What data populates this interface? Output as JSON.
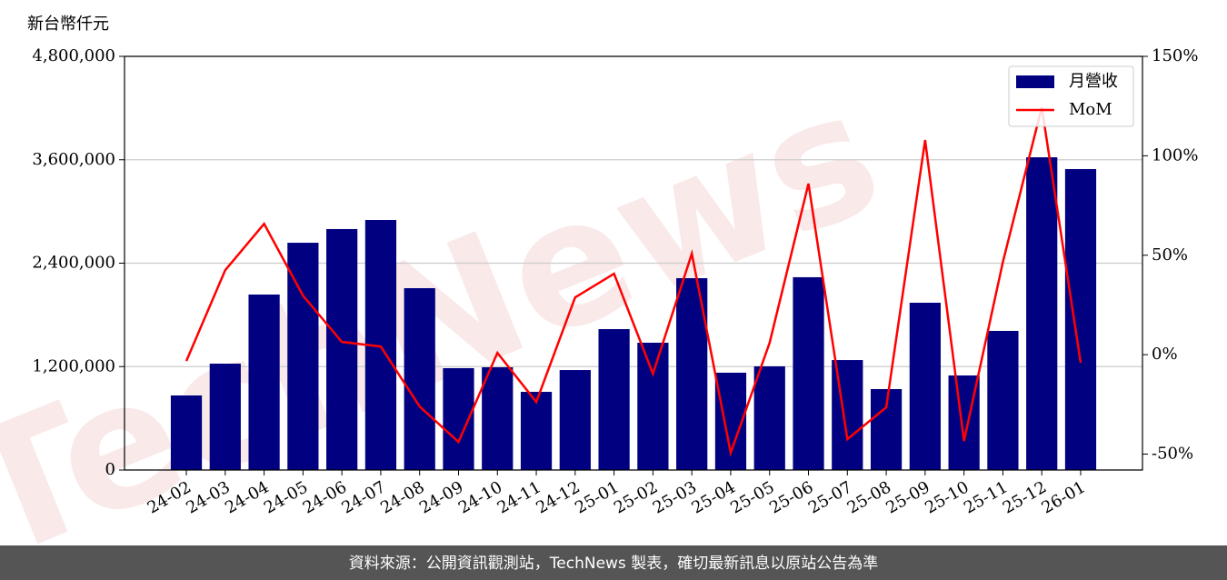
{
  "chart_data": {
    "type": "bar",
    "y_axis_label": "新台幣仟元",
    "watermark": "TechNews",
    "footer": "資料來源：公開資訊觀測站，TechNews 製表，確切最新訊息以原站公告為準",
    "categories": [
      "24-02",
      "24-03",
      "24-04",
      "24-05",
      "24-06",
      "24-07",
      "24-08",
      "24-09",
      "24-10",
      "24-11",
      "24-12",
      "25-01",
      "25-02",
      "25-03",
      "25-04",
      "25-05",
      "25-06",
      "25-07",
      "25-08",
      "25-09",
      "25-10",
      "25-11",
      "25-12",
      "26-01"
    ],
    "series": [
      {
        "name": "月營收",
        "type": "bar",
        "color": "#000080",
        "values": [
          865000,
          1234000,
          2036000,
          2637000,
          2796000,
          2901000,
          2110000,
          1182000,
          1192000,
          907000,
          1160000,
          1635000,
          1477000,
          2226000,
          1129000,
          1203000,
          2237000,
          1276000,
          939000,
          1941000,
          1097000,
          1614000,
          3629000,
          3492000
        ]
      },
      {
        "name": "MoM",
        "type": "line",
        "color": "#ff0000",
        "axis": "y2",
        "values": [
          -3.2,
          42.5,
          65.8,
          29.7,
          6.4,
          4.1,
          -26.1,
          -43.9,
          0.9,
          -23.8,
          28.8,
          40.7,
          -9.6,
          50.8,
          -49.4,
          5.9,
          86.0,
          -42.5,
          -26.5,
          107.9,
          -43.4,
          46.6,
          124.4,
          -4.1
        ]
      }
    ],
    "ylim": [
      0,
      4800000
    ],
    "yticks": [
      0,
      {
        "value": 1200000,
        "label": "1,200,000"
      },
      {
        "value": 2400000,
        "label": "2,400,000"
      },
      {
        "value": 3600000,
        "label": "3,600,000"
      },
      {
        "value": 4800000,
        "label": "4,800,000"
      }
    ],
    "y2lim": [
      -58,
      150
    ],
    "y2ticks": [
      {
        "value": -50,
        "label": "-50%"
      },
      {
        "value": 0,
        "label": "0%"
      },
      {
        "value": 50,
        "label": "50%"
      },
      {
        "value": 100,
        "label": "100%"
      },
      {
        "value": 150,
        "label": "150%"
      }
    ],
    "grid": true,
    "legend": "upper right"
  }
}
